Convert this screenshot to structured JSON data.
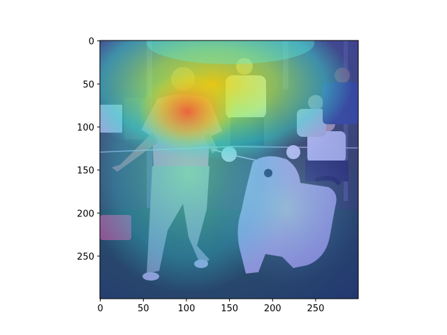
{
  "figure": {
    "x_ticks": [
      0,
      50,
      100,
      150,
      200,
      250
    ],
    "y_ticks": [
      0,
      50,
      100,
      150,
      200,
      250
    ],
    "x_range": [
      0,
      299
    ],
    "y_range": [
      0,
      299
    ],
    "y_inverted": true,
    "colors": {
      "axis": "#000000",
      "background": "#ffffff"
    },
    "image": {
      "kind": "attention-heatmap overlay on photograph",
      "colormap": "jet",
      "scene": "woman in pink shirt running with a long-haired dog at a dog show, spectators seated behind"
    }
  }
}
